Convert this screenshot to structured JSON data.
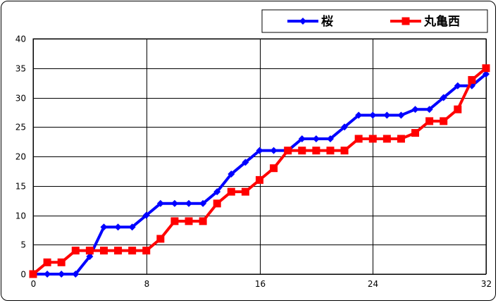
{
  "chart_data": {
    "type": "line",
    "title": "",
    "xlabel": "",
    "ylabel": "",
    "xlim": [
      0,
      32
    ],
    "ylim": [
      0,
      40
    ],
    "xticks": [
      0,
      8,
      16,
      24,
      32
    ],
    "yticks": [
      0,
      5,
      10,
      15,
      20,
      25,
      30,
      35,
      40
    ],
    "grid": true,
    "legend_position": "top-right",
    "x": [
      0,
      1,
      2,
      3,
      4,
      5,
      6,
      7,
      8,
      9,
      10,
      11,
      12,
      13,
      14,
      15,
      16,
      17,
      18,
      19,
      20,
      21,
      22,
      23,
      24,
      25,
      26,
      27,
      28,
      29,
      30,
      31,
      32
    ],
    "series": [
      {
        "name": "桜",
        "color": "#0000ff",
        "marker": "diamond",
        "values": [
          0,
          0,
          0,
          0,
          3,
          8,
          8,
          8,
          10,
          12,
          12,
          12,
          12,
          14,
          17,
          19,
          21,
          21,
          21,
          23,
          23,
          23,
          25,
          27,
          27,
          27,
          27,
          28,
          28,
          30,
          32,
          32,
          34
        ]
      },
      {
        "name": "丸亀西",
        "color": "#ff0000",
        "marker": "square",
        "values": [
          0,
          2,
          2,
          4,
          4,
          4,
          4,
          4,
          4,
          6,
          9,
          9,
          9,
          12,
          14,
          14,
          16,
          18,
          21,
          21,
          21,
          21,
          21,
          23,
          23,
          23,
          23,
          24,
          26,
          26,
          28,
          33,
          35
        ]
      }
    ]
  }
}
